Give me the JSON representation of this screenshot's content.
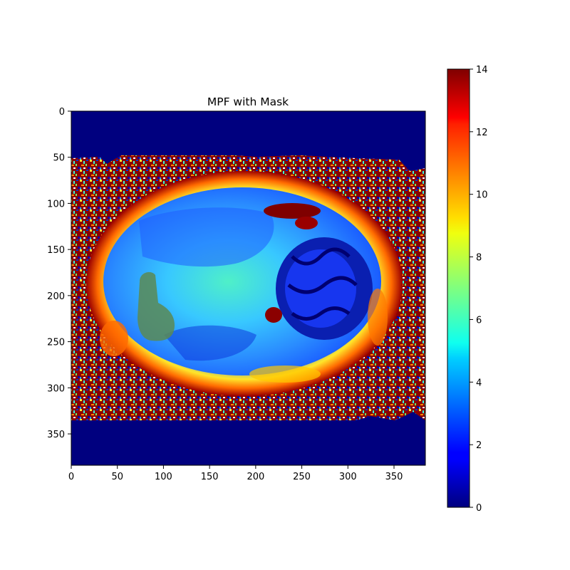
{
  "chart_data": {
    "type": "heatmap",
    "title": "MPF with Mask",
    "xlabel": "",
    "ylabel": "",
    "xlim": [
      0,
      384
    ],
    "ylim": [
      384,
      0
    ],
    "xticks": [
      0,
      50,
      100,
      150,
      200,
      250,
      300,
      350
    ],
    "yticks": [
      0,
      50,
      100,
      150,
      200,
      250,
      300,
      350
    ],
    "colormap": "jet",
    "colorbar": {
      "range": [
        0,
        14
      ],
      "ticks": [
        0,
        2,
        4,
        6,
        8,
        10,
        12,
        14
      ]
    },
    "mask": {
      "color": "#5a8a55",
      "approx_region_data_units": {
        "x": [
          73,
          112
        ],
        "y": [
          175,
          250
        ]
      }
    },
    "grid": false
  }
}
